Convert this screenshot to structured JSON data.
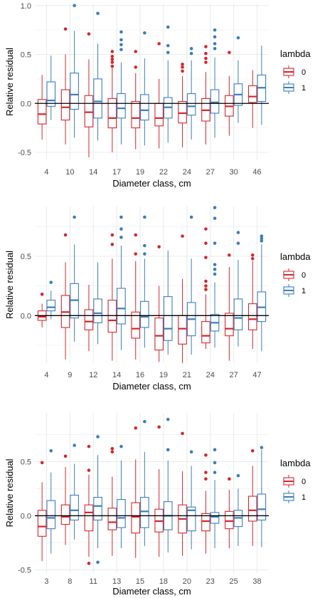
{
  "colors": {
    "lambda_0": "#d7262b",
    "lambda_1": "#3a7ebf",
    "grid": "#ebebeb",
    "zero_line": "#000000"
  },
  "legend": {
    "title": "lambda",
    "labels": [
      "0",
      "1"
    ]
  },
  "chart_data": [
    {
      "type": "boxplot",
      "xlabel": "Diameter class, cm",
      "ylabel": "Relative residual",
      "ylim": [
        -0.58,
        1.02
      ],
      "yticks": [
        -0.5,
        0.0,
        0.5,
        1.0
      ],
      "ytick_labels": [
        "-0.5",
        "0.0",
        "0.5",
        "1.0"
      ],
      "categories": [
        "4",
        "10",
        "14",
        "17",
        "19",
        "22",
        "24",
        "27",
        "30",
        "46"
      ],
      "series": [
        {
          "name": "0",
          "boxes": [
            {
              "whislo": -0.37,
              "q1": -0.21,
              "med": -0.11,
              "q3": 0.04,
              "whishi": 0.29,
              "fliers": []
            },
            {
              "whislo": -0.42,
              "q1": -0.17,
              "med": -0.04,
              "q3": 0.14,
              "whishi": 0.5,
              "fliers": [
                0.76
              ]
            },
            {
              "whislo": -0.55,
              "q1": -0.24,
              "med": -0.09,
              "q3": 0.08,
              "whishi": 0.45,
              "fliers": [
                0.71
              ]
            },
            {
              "whislo": -0.5,
              "q1": -0.25,
              "med": -0.15,
              "q3": 0.05,
              "whishi": 0.37,
              "fliers": [
                0.38,
                0.42,
                0.45,
                0.48,
                0.53
              ]
            },
            {
              "whislo": -0.47,
              "q1": -0.25,
              "med": -0.15,
              "q3": 0.02,
              "whishi": 0.31,
              "fliers": [
                0.37,
                0.53
              ]
            },
            {
              "whislo": -0.46,
              "q1": -0.23,
              "med": -0.15,
              "q3": 0.0,
              "whishi": 0.25,
              "fliers": [
                0.61
              ]
            },
            {
              "whislo": -0.45,
              "q1": -0.2,
              "med": -0.1,
              "q3": 0.02,
              "whishi": 0.28,
              "fliers": [
                0.33,
                0.37,
                0.4
              ]
            },
            {
              "whislo": -0.42,
              "q1": -0.18,
              "med": -0.07,
              "q3": 0.05,
              "whishi": 0.32,
              "fliers": [
                0.42,
                0.46,
                0.51,
                0.58
              ]
            },
            {
              "whislo": -0.33,
              "q1": -0.13,
              "med": -0.03,
              "q3": 0.08,
              "whishi": 0.28,
              "fliers": [
                0.52
              ]
            },
            {
              "whislo": -0.25,
              "q1": 0.01,
              "med": 0.07,
              "q3": 0.18,
              "whishi": 0.34,
              "fliers": []
            }
          ]
        },
        {
          "name": "1",
          "boxes": [
            {
              "whislo": -0.17,
              "q1": -0.03,
              "med": 0.03,
              "q3": 0.22,
              "whishi": 0.49,
              "fliers": []
            },
            {
              "whislo": -0.35,
              "q1": -0.06,
              "med": 0.09,
              "q3": 0.31,
              "whishi": 0.74,
              "fliers": [
                1.0
              ]
            },
            {
              "whislo": -0.38,
              "q1": -0.15,
              "med": 0.02,
              "q3": 0.25,
              "whishi": 0.61,
              "fliers": [
                0.92
              ]
            },
            {
              "whislo": -0.42,
              "q1": -0.15,
              "med": -0.05,
              "q3": 0.1,
              "whishi": 0.42,
              "fliers": [
                0.55,
                0.6,
                0.65,
                0.73
              ]
            },
            {
              "whislo": -0.43,
              "q1": -0.17,
              "med": -0.07,
              "q3": 0.09,
              "whishi": 0.46,
              "fliers": [
                0.72
              ]
            },
            {
              "whislo": -0.4,
              "q1": -0.15,
              "med": -0.04,
              "q3": 0.06,
              "whishi": 0.44,
              "fliers": [
                0.52,
                0.59,
                0.78
              ]
            },
            {
              "whislo": -0.37,
              "q1": -0.12,
              "med": -0.03,
              "q3": 0.1,
              "whishi": 0.44,
              "fliers": [
                0.51,
                0.56
              ]
            },
            {
              "whislo": -0.35,
              "q1": -0.1,
              "med": 0.01,
              "q3": 0.14,
              "whishi": 0.47,
              "fliers": [
                0.56,
                0.61,
                0.68,
                0.75
              ]
            },
            {
              "whislo": -0.2,
              "q1": -0.02,
              "med": 0.09,
              "q3": 0.2,
              "whishi": 0.44,
              "fliers": [
                0.67
              ]
            },
            {
              "whislo": -0.22,
              "q1": 0.02,
              "med": 0.16,
              "q3": 0.29,
              "whishi": 0.59,
              "fliers": []
            }
          ]
        }
      ]
    },
    {
      "type": "boxplot",
      "xlabel": "Diameter class, cm",
      "ylabel": "Relative residual",
      "ylim": [
        -0.4,
        0.92
      ],
      "yticks": [
        0.0,
        0.5
      ],
      "ytick_labels": [
        "0.0",
        "0.5"
      ],
      "categories": [
        "4",
        "9",
        "12",
        "14",
        "16",
        "19",
        "21",
        "24",
        "27",
        "47"
      ],
      "series": [
        {
          "name": "0",
          "boxes": [
            {
              "whislo": -0.1,
              "q1": -0.04,
              "med": -0.01,
              "q3": 0.04,
              "whishi": 0.1,
              "fliers": [
                0.18
              ]
            },
            {
              "whislo": -0.37,
              "q1": -0.1,
              "med": 0.03,
              "q3": 0.17,
              "whishi": 0.45,
              "fliers": [
                0.68
              ]
            },
            {
              "whislo": -0.3,
              "q1": -0.12,
              "med": -0.05,
              "q3": 0.05,
              "whishi": 0.26,
              "fliers": []
            },
            {
              "whislo": -0.38,
              "q1": -0.14,
              "med": -0.04,
              "q3": 0.13,
              "whishi": 0.48,
              "fliers": [
                0.6,
                0.68
              ]
            },
            {
              "whislo": -0.37,
              "q1": -0.19,
              "med": -0.11,
              "q3": 0.03,
              "whishi": 0.46,
              "fliers": [
                0.52,
                0.68
              ]
            },
            {
              "whislo": -0.39,
              "q1": -0.29,
              "med": -0.17,
              "q3": -0.02,
              "whishi": 0.25,
              "fliers": [
                0.58
              ]
            },
            {
              "whislo": -0.4,
              "q1": -0.24,
              "med": -0.11,
              "q3": 0.0,
              "whishi": 0.31,
              "fliers": [
                0.67
              ]
            },
            {
              "whislo": -0.28,
              "q1": -0.23,
              "med": -0.17,
              "q3": -0.05,
              "whishi": 0.18,
              "fliers": [
                0.22,
                0.25,
                0.29,
                0.49,
                0.61,
                0.73
              ]
            },
            {
              "whislo": -0.38,
              "q1": -0.17,
              "med": -0.11,
              "q3": 0.02,
              "whishi": 0.41,
              "fliers": [
                0.51
              ]
            },
            {
              "whislo": -0.28,
              "q1": -0.12,
              "med": -0.03,
              "q3": 0.1,
              "whishi": 0.46,
              "fliers": [
                0.48,
                0.51
              ]
            }
          ]
        },
        {
          "name": "1",
          "boxes": [
            {
              "whislo": -0.03,
              "q1": 0.04,
              "med": 0.07,
              "q3": 0.13,
              "whishi": 0.21,
              "fliers": [
                0.28
              ]
            },
            {
              "whislo": -0.22,
              "q1": -0.02,
              "med": 0.13,
              "q3": 0.27,
              "whishi": 0.6,
              "fliers": [
                0.83
              ]
            },
            {
              "whislo": -0.24,
              "q1": -0.06,
              "med": 0.02,
              "q3": 0.14,
              "whishi": 0.45,
              "fliers": []
            },
            {
              "whislo": -0.29,
              "q1": -0.07,
              "med": 0.06,
              "q3": 0.23,
              "whishi": 0.59,
              "fliers": [
                0.66,
                0.73,
                0.83
              ]
            },
            {
              "whislo": -0.27,
              "q1": -0.1,
              "med": -0.01,
              "q3": 0.12,
              "whishi": 0.48,
              "fliers": [
                0.52,
                0.59,
                0.83
              ]
            },
            {
              "whislo": -0.33,
              "q1": -0.21,
              "med": -0.11,
              "q3": 0.16,
              "whishi": 0.55,
              "fliers": []
            },
            {
              "whislo": -0.33,
              "q1": -0.17,
              "med": -0.03,
              "q3": 0.11,
              "whishi": 0.48,
              "fliers": [
                0.83
              ]
            },
            {
              "whislo": -0.27,
              "q1": -0.13,
              "med": -0.06,
              "q3": 0.01,
              "whishi": 0.28,
              "fliers": [
                0.35,
                0.39,
                0.43,
                0.61,
                0.82,
                0.91
              ]
            },
            {
              "whislo": -0.26,
              "q1": -0.12,
              "med": -0.02,
              "q3": 0.14,
              "whishi": 0.47,
              "fliers": [
                0.61,
                0.7
              ]
            },
            {
              "whislo": -0.3,
              "q1": -0.05,
              "med": 0.07,
              "q3": 0.2,
              "whishi": 0.6,
              "fliers": [
                0.63,
                0.65,
                0.67
              ]
            }
          ]
        }
      ]
    },
    {
      "type": "boxplot",
      "xlabel": "Diameter class, cm",
      "ylabel": "Relative residual",
      "ylim": [
        -0.53,
        0.95
      ],
      "yticks": [
        -0.5,
        0.0,
        0.5
      ],
      "ytick_labels": [
        "-0.5",
        "0.0",
        "0.5"
      ],
      "categories": [
        "3",
        "8",
        "11",
        "13",
        "15",
        "18",
        "20",
        "23",
        "25",
        "38"
      ],
      "series": [
        {
          "name": "0",
          "boxes": [
            {
              "whislo": -0.42,
              "q1": -0.19,
              "med": -0.1,
              "q3": 0.05,
              "whishi": 0.31,
              "fliers": [
                0.49
              ]
            },
            {
              "whislo": -0.27,
              "q1": -0.08,
              "med": -0.01,
              "q3": 0.1,
              "whishi": 0.45,
              "fliers": [
                0.55
              ]
            },
            {
              "whislo": -0.38,
              "q1": -0.14,
              "med": 0.03,
              "q3": 0.1,
              "whishi": 0.38,
              "fliers": [
                -0.44,
                0.42,
                0.64
              ]
            },
            {
              "whislo": -0.37,
              "q1": -0.13,
              "med": -0.06,
              "q3": 0.07,
              "whishi": 0.36,
              "fliers": [
                0.59,
                0.62
              ]
            },
            {
              "whislo": -0.39,
              "q1": -0.16,
              "med": -0.01,
              "q3": 0.12,
              "whishi": 0.52,
              "fliers": [
                0.81
              ]
            },
            {
              "whislo": -0.38,
              "q1": -0.15,
              "med": -0.05,
              "q3": 0.06,
              "whishi": 0.43,
              "fliers": [
                0.82
              ]
            },
            {
              "whislo": -0.37,
              "q1": -0.16,
              "med": -0.03,
              "q3": 0.1,
              "whishi": 0.41,
              "fliers": [
                0.76
              ]
            },
            {
              "whislo": -0.35,
              "q1": -0.14,
              "med": -0.05,
              "q3": 0.02,
              "whishi": 0.23,
              "fliers": [
                0.34,
                0.4,
                0.56
              ]
            },
            {
              "whislo": -0.3,
              "q1": -0.12,
              "med": -0.05,
              "q3": 0.04,
              "whishi": 0.24,
              "fliers": [
                0.34
              ]
            },
            {
              "whislo": -0.28,
              "q1": -0.05,
              "med": 0.05,
              "q3": 0.18,
              "whishi": 0.46,
              "fliers": [
                0.6
              ]
            }
          ]
        },
        {
          "name": "1",
          "boxes": [
            {
              "whislo": -0.35,
              "q1": -0.12,
              "med": -0.02,
              "q3": 0.14,
              "whishi": 0.4,
              "fliers": [
                0.6
              ]
            },
            {
              "whislo": -0.22,
              "q1": -0.04,
              "med": 0.05,
              "q3": 0.19,
              "whishi": 0.48,
              "fliers": [
                0.65
              ]
            },
            {
              "whislo": -0.3,
              "q1": -0.04,
              "med": 0.09,
              "q3": 0.17,
              "whishi": 0.56,
              "fliers": [
                -0.43,
                0.73
              ]
            },
            {
              "whislo": -0.3,
              "q1": -0.11,
              "med": -0.02,
              "q3": 0.15,
              "whishi": 0.51,
              "fliers": [
                0.64
              ]
            },
            {
              "whislo": -0.28,
              "q1": -0.11,
              "med": 0.04,
              "q3": 0.17,
              "whishi": 0.59,
              "fliers": [
                0.87
              ]
            },
            {
              "whislo": -0.34,
              "q1": -0.13,
              "med": 0.0,
              "q3": 0.13,
              "whishi": 0.51,
              "fliers": [
                0.61,
                0.89
              ]
            },
            {
              "whislo": -0.31,
              "q1": -0.14,
              "med": 0.05,
              "q3": 0.08,
              "whishi": 0.46,
              "fliers": [
                0.59
              ]
            },
            {
              "whislo": -0.3,
              "q1": -0.07,
              "med": -0.01,
              "q3": 0.03,
              "whishi": 0.33,
              "fliers": [
                0.4,
                0.49,
                0.61
              ]
            },
            {
              "whislo": -0.28,
              "q1": -0.1,
              "med": -0.02,
              "q3": 0.05,
              "whishi": 0.25,
              "fliers": [
                0.37
              ]
            },
            {
              "whislo": -0.29,
              "q1": -0.04,
              "med": 0.06,
              "q3": 0.2,
              "whishi": 0.61,
              "fliers": [
                0.63
              ]
            }
          ]
        }
      ]
    }
  ]
}
